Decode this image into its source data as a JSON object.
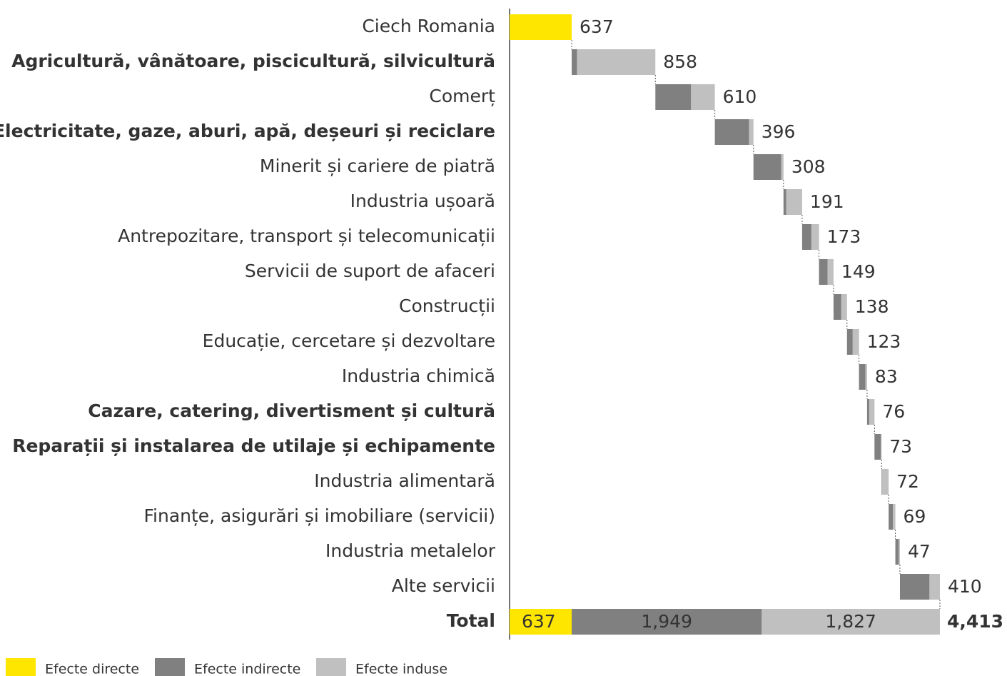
{
  "chart_data": {
    "type": "waterfall",
    "categories": [
      "Ciech Romania",
      "Agricultură, vânătoare, piscicultură, silvicultură",
      "Comerț",
      "Electricitate, gaze, aburi, apă, deșeuri și reciclare",
      "Minerit și cariere de piatră",
      "Industria ușoară",
      "Antrepozitare, transport și telecomunicații",
      "Servicii de suport de afaceri",
      "Construcții",
      "Educație, cercetare și dezvoltare",
      "Industria chimică",
      "Cazare, catering, divertisment și cultură",
      "Reparații și instalarea de utilaje și echipamente",
      "Industria alimentară",
      "Finanțe, asigurări și imobiliare (servicii)",
      "Industria metalelor",
      "Alte servicii"
    ],
    "values": [
      637,
      858,
      610,
      396,
      308,
      191,
      173,
      149,
      138,
      123,
      83,
      76,
      73,
      72,
      69,
      47,
      410
    ],
    "series": [
      {
        "name": "Efecte directe",
        "color": "#ffe600",
        "values": [
          637,
          null,
          null,
          null,
          null,
          null,
          null,
          null,
          null,
          null,
          null,
          null,
          null,
          null,
          null,
          null,
          null
        ]
      },
      {
        "name": "Efecte indirecte",
        "color": "#808080",
        "values": [
          null,
          55,
          366,
          351,
          285,
          29,
          95,
          88,
          80,
          59,
          66,
          22,
          66,
          5,
          44,
          35,
          303
        ]
      },
      {
        "name": "Efecte induse",
        "color": "#c0c0c0",
        "values": [
          null,
          803,
          244,
          45,
          23,
          162,
          78,
          61,
          58,
          64,
          17,
          54,
          7,
          67,
          25,
          12,
          107
        ]
      }
    ],
    "total": {
      "label": "Total",
      "values": [
        637,
        1949,
        1827
      ],
      "value_labels": [
        "637",
        "1,949",
        "1,827"
      ],
      "sum": 4413,
      "sum_label": "4,413"
    }
  }
}
